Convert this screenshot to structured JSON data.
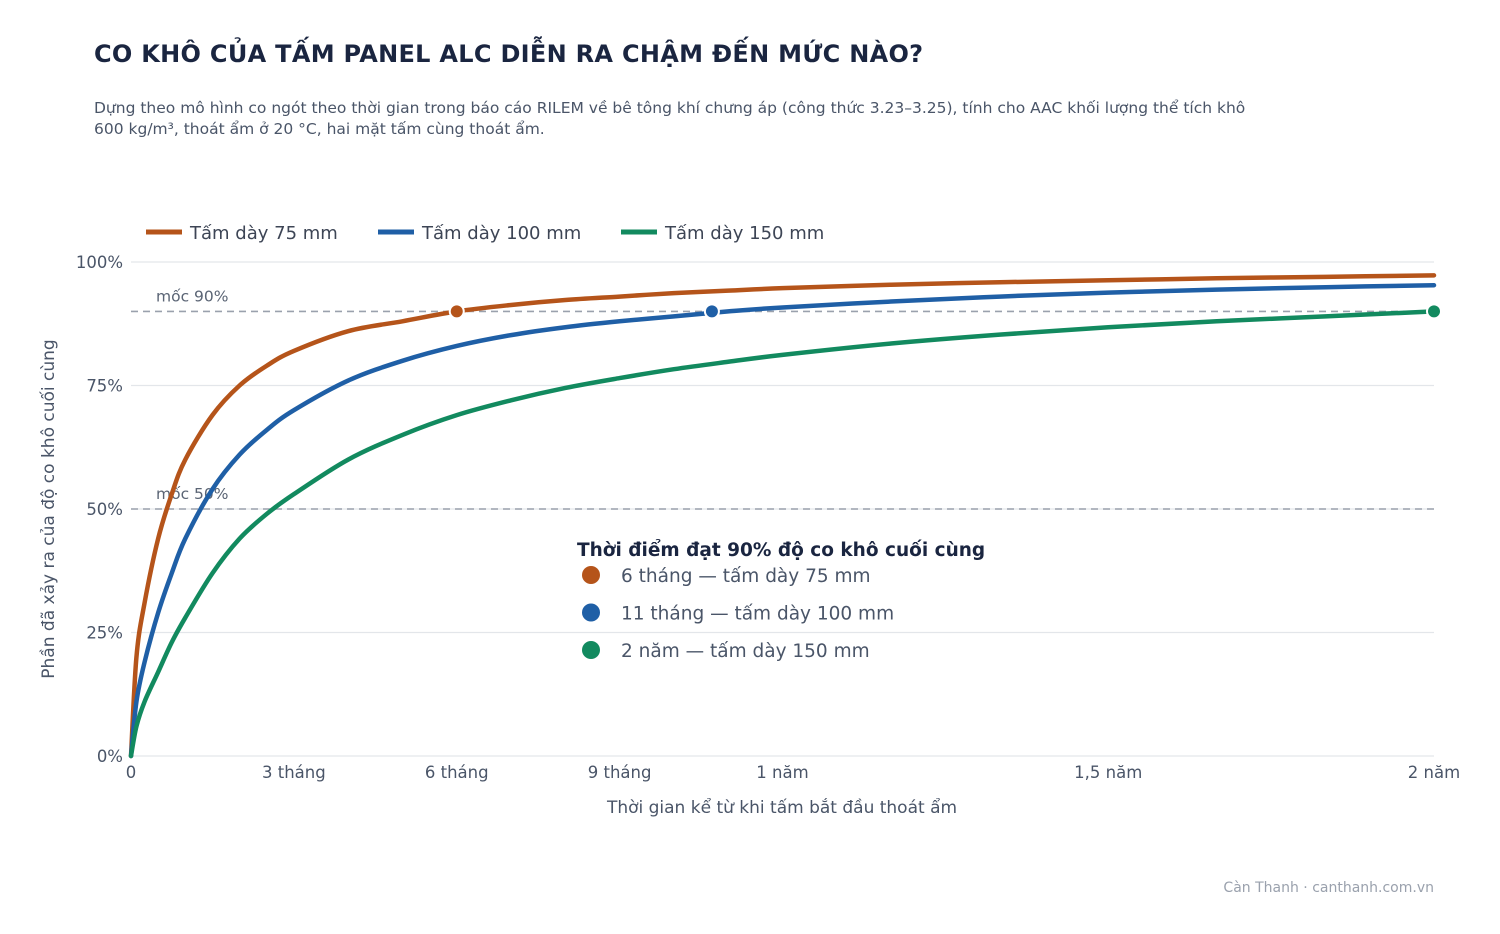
{
  "title": "CO KHÔ CỦA TẤM PANEL ALC DIỄN RA CHẬM ĐẾN MỨC NÀO?",
  "subtitle": "Dựng theo mô hình co ngót theo thời gian trong báo cáo RILEM về bê tông khí chưng áp (công thức 3.23–3.25), tính cho AAC khối lượng thể tích khô 600 kg/m³, thoát ẩm ở 20 °C, hai mặt tấm cùng thoát ẩm.",
  "credit": "Càn Thanh · canthanh.com.vn",
  "chart_data": {
    "type": "line",
    "xlabel": "Thời gian kể từ khi tấm bắt đầu thoát ẩm",
    "ylabel": "Phần đã xảy ra của độ co khô cuối cùng",
    "xlim": [
      0,
      24
    ],
    "ylim": [
      0,
      100
    ],
    "x_ticks": [
      {
        "value": 0,
        "label": "0"
      },
      {
        "value": 3,
        "label": "3 tháng"
      },
      {
        "value": 6,
        "label": "6 tháng"
      },
      {
        "value": 9,
        "label": "9 tháng"
      },
      {
        "value": 12,
        "label": "1 năm"
      },
      {
        "value": 18,
        "label": "1,5 năm"
      },
      {
        "value": 24,
        "label": "2 năm"
      }
    ],
    "y_ticks": [
      {
        "value": 0,
        "label": "0%"
      },
      {
        "value": 25,
        "label": "25%"
      },
      {
        "value": 50,
        "label": "50%"
      },
      {
        "value": 75,
        "label": "75%"
      },
      {
        "value": 100,
        "label": "100%"
      }
    ],
    "grid": true,
    "legend_position": "top-left",
    "reference_lines": [
      {
        "value": 90,
        "label": "mốc 90%"
      },
      {
        "value": 50,
        "label": "mốc 50%"
      }
    ],
    "series": [
      {
        "name": "Tấm dày 75 mm",
        "color": "#b5541a",
        "x": [
          0,
          0.1,
          0.25,
          0.5,
          0.75,
          1,
          1.5,
          2,
          2.5,
          3,
          4,
          5,
          6,
          7,
          8,
          9,
          10,
          11,
          12,
          14,
          16,
          18,
          20,
          22,
          24
        ],
        "y": [
          0,
          20,
          31,
          44,
          53,
          60,
          69,
          75,
          79,
          82,
          86,
          88,
          90,
          91.3,
          92.3,
          93,
          93.7,
          94.2,
          94.7,
          95.4,
          95.9,
          96.3,
          96.7,
          97,
          97.3
        ],
        "marker": {
          "x": 6,
          "y": 90
        }
      },
      {
        "name": "Tấm dày 100 mm",
        "color": "#1f5fa6",
        "x": [
          0,
          0.1,
          0.25,
          0.5,
          0.75,
          1,
          1.5,
          2,
          2.5,
          3,
          4,
          5,
          6,
          7,
          8,
          9,
          10,
          11,
          12,
          14,
          16,
          18,
          20,
          22,
          24
        ],
        "y": [
          0,
          11,
          19,
          29,
          37,
          44,
          54,
          61,
          66,
          70,
          76,
          80,
          83,
          85.2,
          86.8,
          88,
          89,
          90,
          90.8,
          92,
          93,
          93.8,
          94.4,
          94.9,
          95.3
        ],
        "marker": {
          "x": 10.7,
          "y": 90
        }
      },
      {
        "name": "Tấm dày 150 mm",
        "color": "#128a5f",
        "x": [
          0,
          0.1,
          0.25,
          0.5,
          0.75,
          1,
          1.5,
          2,
          2.5,
          3,
          4,
          5,
          6,
          7,
          8,
          9,
          10,
          11,
          12,
          14,
          16,
          18,
          20,
          22,
          24
        ],
        "y": [
          0,
          6,
          11,
          17,
          23,
          28,
          37,
          44,
          49,
          53,
          60,
          65,
          69,
          72,
          74.5,
          76.5,
          78.3,
          79.8,
          81.2,
          83.5,
          85.3,
          86.8,
          88,
          89,
          90
        ],
        "marker": {
          "x": 24,
          "y": 90
        }
      }
    ],
    "annotation": {
      "title": "Thời điểm đạt 90% độ co khô cuối cùng",
      "items": [
        {
          "text": "6 tháng  —  tấm dày 75 mm",
          "color": "#b5541a"
        },
        {
          "text": "11 tháng  —  tấm dày 100 mm",
          "color": "#1f5fa6"
        },
        {
          "text": "2 năm  —  tấm dày 150 mm",
          "color": "#128a5f"
        }
      ]
    }
  }
}
